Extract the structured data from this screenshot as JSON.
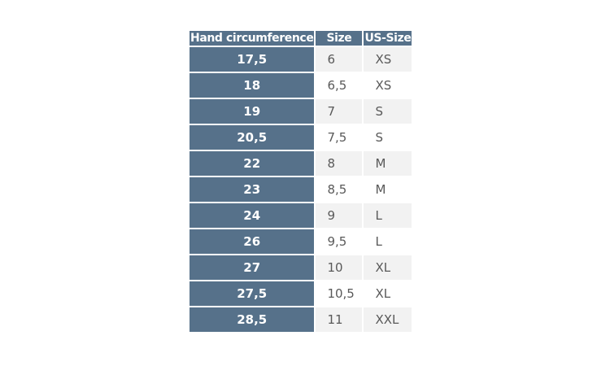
{
  "table": {
    "headers": [
      "Hand circumference",
      "Size",
      "US-Size"
    ],
    "rows": [
      [
        "17,5",
        "6",
        "XS"
      ],
      [
        "18",
        "6,5",
        "XS"
      ],
      [
        "19",
        "7",
        "S"
      ],
      [
        "20,5",
        "7,5",
        "S"
      ],
      [
        "22",
        "8",
        "M"
      ],
      [
        "23",
        "8,5",
        "M"
      ],
      [
        "24",
        "9",
        "L"
      ],
      [
        "26",
        "9,5",
        "L"
      ],
      [
        "27",
        "10",
        "XL"
      ],
      [
        "27,5",
        "10,5",
        "XL"
      ],
      [
        "28,5",
        "11",
        "XXL"
      ]
    ],
    "colors": {
      "header": "#56718a",
      "stripe": "#f2f2f2",
      "text": "#595959"
    }
  }
}
